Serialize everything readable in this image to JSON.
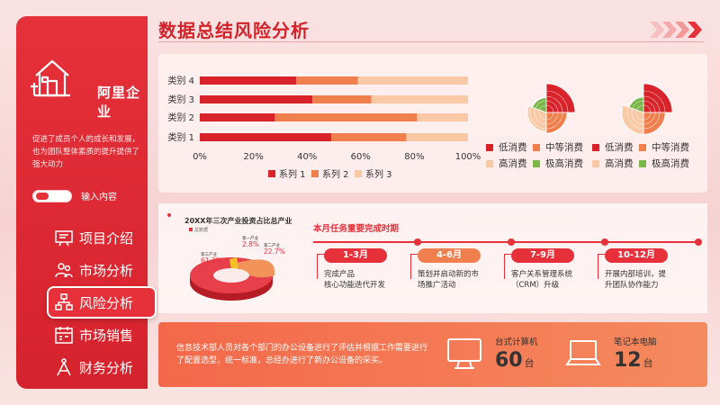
{
  "sidebar": {
    "brand": "阿里企业",
    "description": "促进了成员个人的成长和发展，也为团队整体素质的提升提供了强大动力",
    "toggle_label": "输入内容",
    "nav": [
      {
        "label": "项目介绍",
        "icon": "presentation-icon",
        "active": false
      },
      {
        "label": "市场分析",
        "icon": "team-icon",
        "active": false
      },
      {
        "label": "风险分析",
        "icon": "network-icon",
        "active": true
      },
      {
        "label": "市场销售",
        "icon": "calendar-icon",
        "active": false
      },
      {
        "label": "财务分析",
        "icon": "compass-icon",
        "active": false
      }
    ]
  },
  "header": {
    "title": "数据总结风险分析"
  },
  "colors": {
    "series1": "#d9232b",
    "series2": "#f07f4e",
    "series3": "#f9c9a6",
    "low": "#d9232b",
    "mid": "#f07f4e",
    "high": "#f9c9a6",
    "very_high": "#7ab648"
  },
  "chart_data": [
    {
      "type": "bar",
      "stacked": true,
      "orientation": "horizontal",
      "categories": [
        "类别 1",
        "类别 2",
        "类别 3",
        "类别 4"
      ],
      "series": [
        {
          "name": "系列 1",
          "values": [
            49,
            28,
            42,
            36
          ]
        },
        {
          "name": "系列 2",
          "values": [
            28,
            53,
            22,
            23
          ]
        },
        {
          "name": "系列 3",
          "values": [
            23,
            19,
            36,
            41
          ]
        }
      ],
      "xlim": [
        0,
        100
      ],
      "xticks": [
        "0%",
        "20%",
        "40%",
        "60%",
        "80%",
        "100%"
      ],
      "legend_position": "bottom"
    },
    {
      "type": "pie",
      "subtype": "nightingale",
      "categories": [
        "低消费",
        "中等消费",
        "高消费",
        "极高消费"
      ],
      "values": [
        45,
        25,
        20,
        10
      ],
      "legend_position": "bottom"
    },
    {
      "type": "pie",
      "subtype": "nightingale",
      "categories": [
        "低消费",
        "中等消费",
        "高消费",
        "极高消费"
      ],
      "values": [
        40,
        25,
        25,
        10
      ],
      "legend_position": "bottom"
    },
    {
      "type": "pie",
      "subtype": "3d-donut",
      "title": "20XX年三次产业投资占比总产业",
      "legend_note": "总数据",
      "labels": [
        {
          "name": "第一产业",
          "value": "2.8%"
        },
        {
          "name": "第二产业",
          "value": "22.7%"
        },
        {
          "name": "第三产业",
          "value": "61.2%"
        }
      ],
      "values": [
        2.8,
        22.7,
        61.2
      ]
    }
  ],
  "tasks": {
    "title": "本月任务重要完成时期",
    "stages": [
      {
        "label": "1-3月",
        "desc": "完成产品\n核心功能迭代开发",
        "color": "#e6303a"
      },
      {
        "label": "4-6月",
        "desc": "策划并启动新的市\n场推广活动",
        "color": "#f07f4e"
      },
      {
        "label": "7-9月",
        "desc": "客户关系管理系统\n（CRM）升级",
        "color": "#e6303a"
      },
      {
        "label": "10-12月",
        "desc": "开展内部培训，提\n升团队协作能力",
        "color": "#e6303a"
      }
    ]
  },
  "bottom": {
    "text": "信息技术部人员对各个部门的办公设备进行了评估并根据工作需要进行了配置选型，统一标准，总经办进行了新办公设备的采买。",
    "devices": [
      {
        "label": "台式计算机",
        "value": "60",
        "unit": "台",
        "icon": "desktop-icon"
      },
      {
        "label": "笔记本电脑",
        "value": "12",
        "unit": "台",
        "icon": "laptop-icon"
      }
    ]
  }
}
